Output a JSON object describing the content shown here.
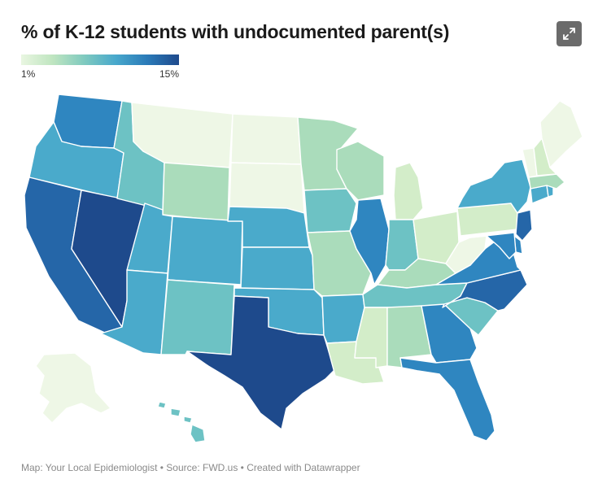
{
  "title": "% of K-12 students with undocumented parent(s)",
  "legend": {
    "min_label": "1%",
    "max_label": "15%"
  },
  "footer": {
    "text": "Map: Your Local Epidemiologist • Source: FWD.us • Created with Datawrapper"
  },
  "icons": {
    "expand": "expand-icon"
  },
  "colors": {
    "c1": "#eef7e6",
    "c2": "#d3edc9",
    "c3": "#aadcbb",
    "c4": "#6dc2c4",
    "c5": "#4aaacb",
    "c6": "#2f86c0",
    "c7": "#2566a8",
    "c8": "#1e4a8c"
  },
  "states": [
    {
      "id": "WA",
      "bin": "c6"
    },
    {
      "id": "OR",
      "bin": "c5"
    },
    {
      "id": "CA",
      "bin": "c7"
    },
    {
      "id": "NV",
      "bin": "c8"
    },
    {
      "id": "ID",
      "bin": "c4"
    },
    {
      "id": "MT",
      "bin": "c1"
    },
    {
      "id": "WY",
      "bin": "c3"
    },
    {
      "id": "UT",
      "bin": "c5"
    },
    {
      "id": "AZ",
      "bin": "c5"
    },
    {
      "id": "CO",
      "bin": "c5"
    },
    {
      "id": "NM",
      "bin": "c4"
    },
    {
      "id": "ND",
      "bin": "c1"
    },
    {
      "id": "SD",
      "bin": "c1"
    },
    {
      "id": "NE",
      "bin": "c5"
    },
    {
      "id": "KS",
      "bin": "c5"
    },
    {
      "id": "OK",
      "bin": "c5"
    },
    {
      "id": "TX",
      "bin": "c8"
    },
    {
      "id": "MN",
      "bin": "c3"
    },
    {
      "id": "IA",
      "bin": "c4"
    },
    {
      "id": "MO",
      "bin": "c3"
    },
    {
      "id": "AR",
      "bin": "c5"
    },
    {
      "id": "LA",
      "bin": "c2"
    },
    {
      "id": "WI",
      "bin": "c3"
    },
    {
      "id": "IL",
      "bin": "c6"
    },
    {
      "id": "MI",
      "bin": "c2"
    },
    {
      "id": "IN",
      "bin": "c4"
    },
    {
      "id": "OH",
      "bin": "c2"
    },
    {
      "id": "KY",
      "bin": "c3"
    },
    {
      "id": "TN",
      "bin": "c4"
    },
    {
      "id": "MS",
      "bin": "c2"
    },
    {
      "id": "AL",
      "bin": "c3"
    },
    {
      "id": "GA",
      "bin": "c6"
    },
    {
      "id": "FL",
      "bin": "c6"
    },
    {
      "id": "SC",
      "bin": "c4"
    },
    {
      "id": "NC",
      "bin": "c7"
    },
    {
      "id": "VA",
      "bin": "c6"
    },
    {
      "id": "WV",
      "bin": "c1"
    },
    {
      "id": "PA",
      "bin": "c2"
    },
    {
      "id": "NY",
      "bin": "c5"
    },
    {
      "id": "NJ",
      "bin": "c7"
    },
    {
      "id": "DE",
      "bin": "c6"
    },
    {
      "id": "MD",
      "bin": "c6"
    },
    {
      "id": "CT",
      "bin": "c5"
    },
    {
      "id": "RI",
      "bin": "c5"
    },
    {
      "id": "MA",
      "bin": "c3"
    },
    {
      "id": "VT",
      "bin": "c1"
    },
    {
      "id": "NH",
      "bin": "c2"
    },
    {
      "id": "ME",
      "bin": "c1"
    },
    {
      "id": "AK",
      "bin": "c1"
    },
    {
      "id": "HI",
      "bin": "c4"
    }
  ]
}
